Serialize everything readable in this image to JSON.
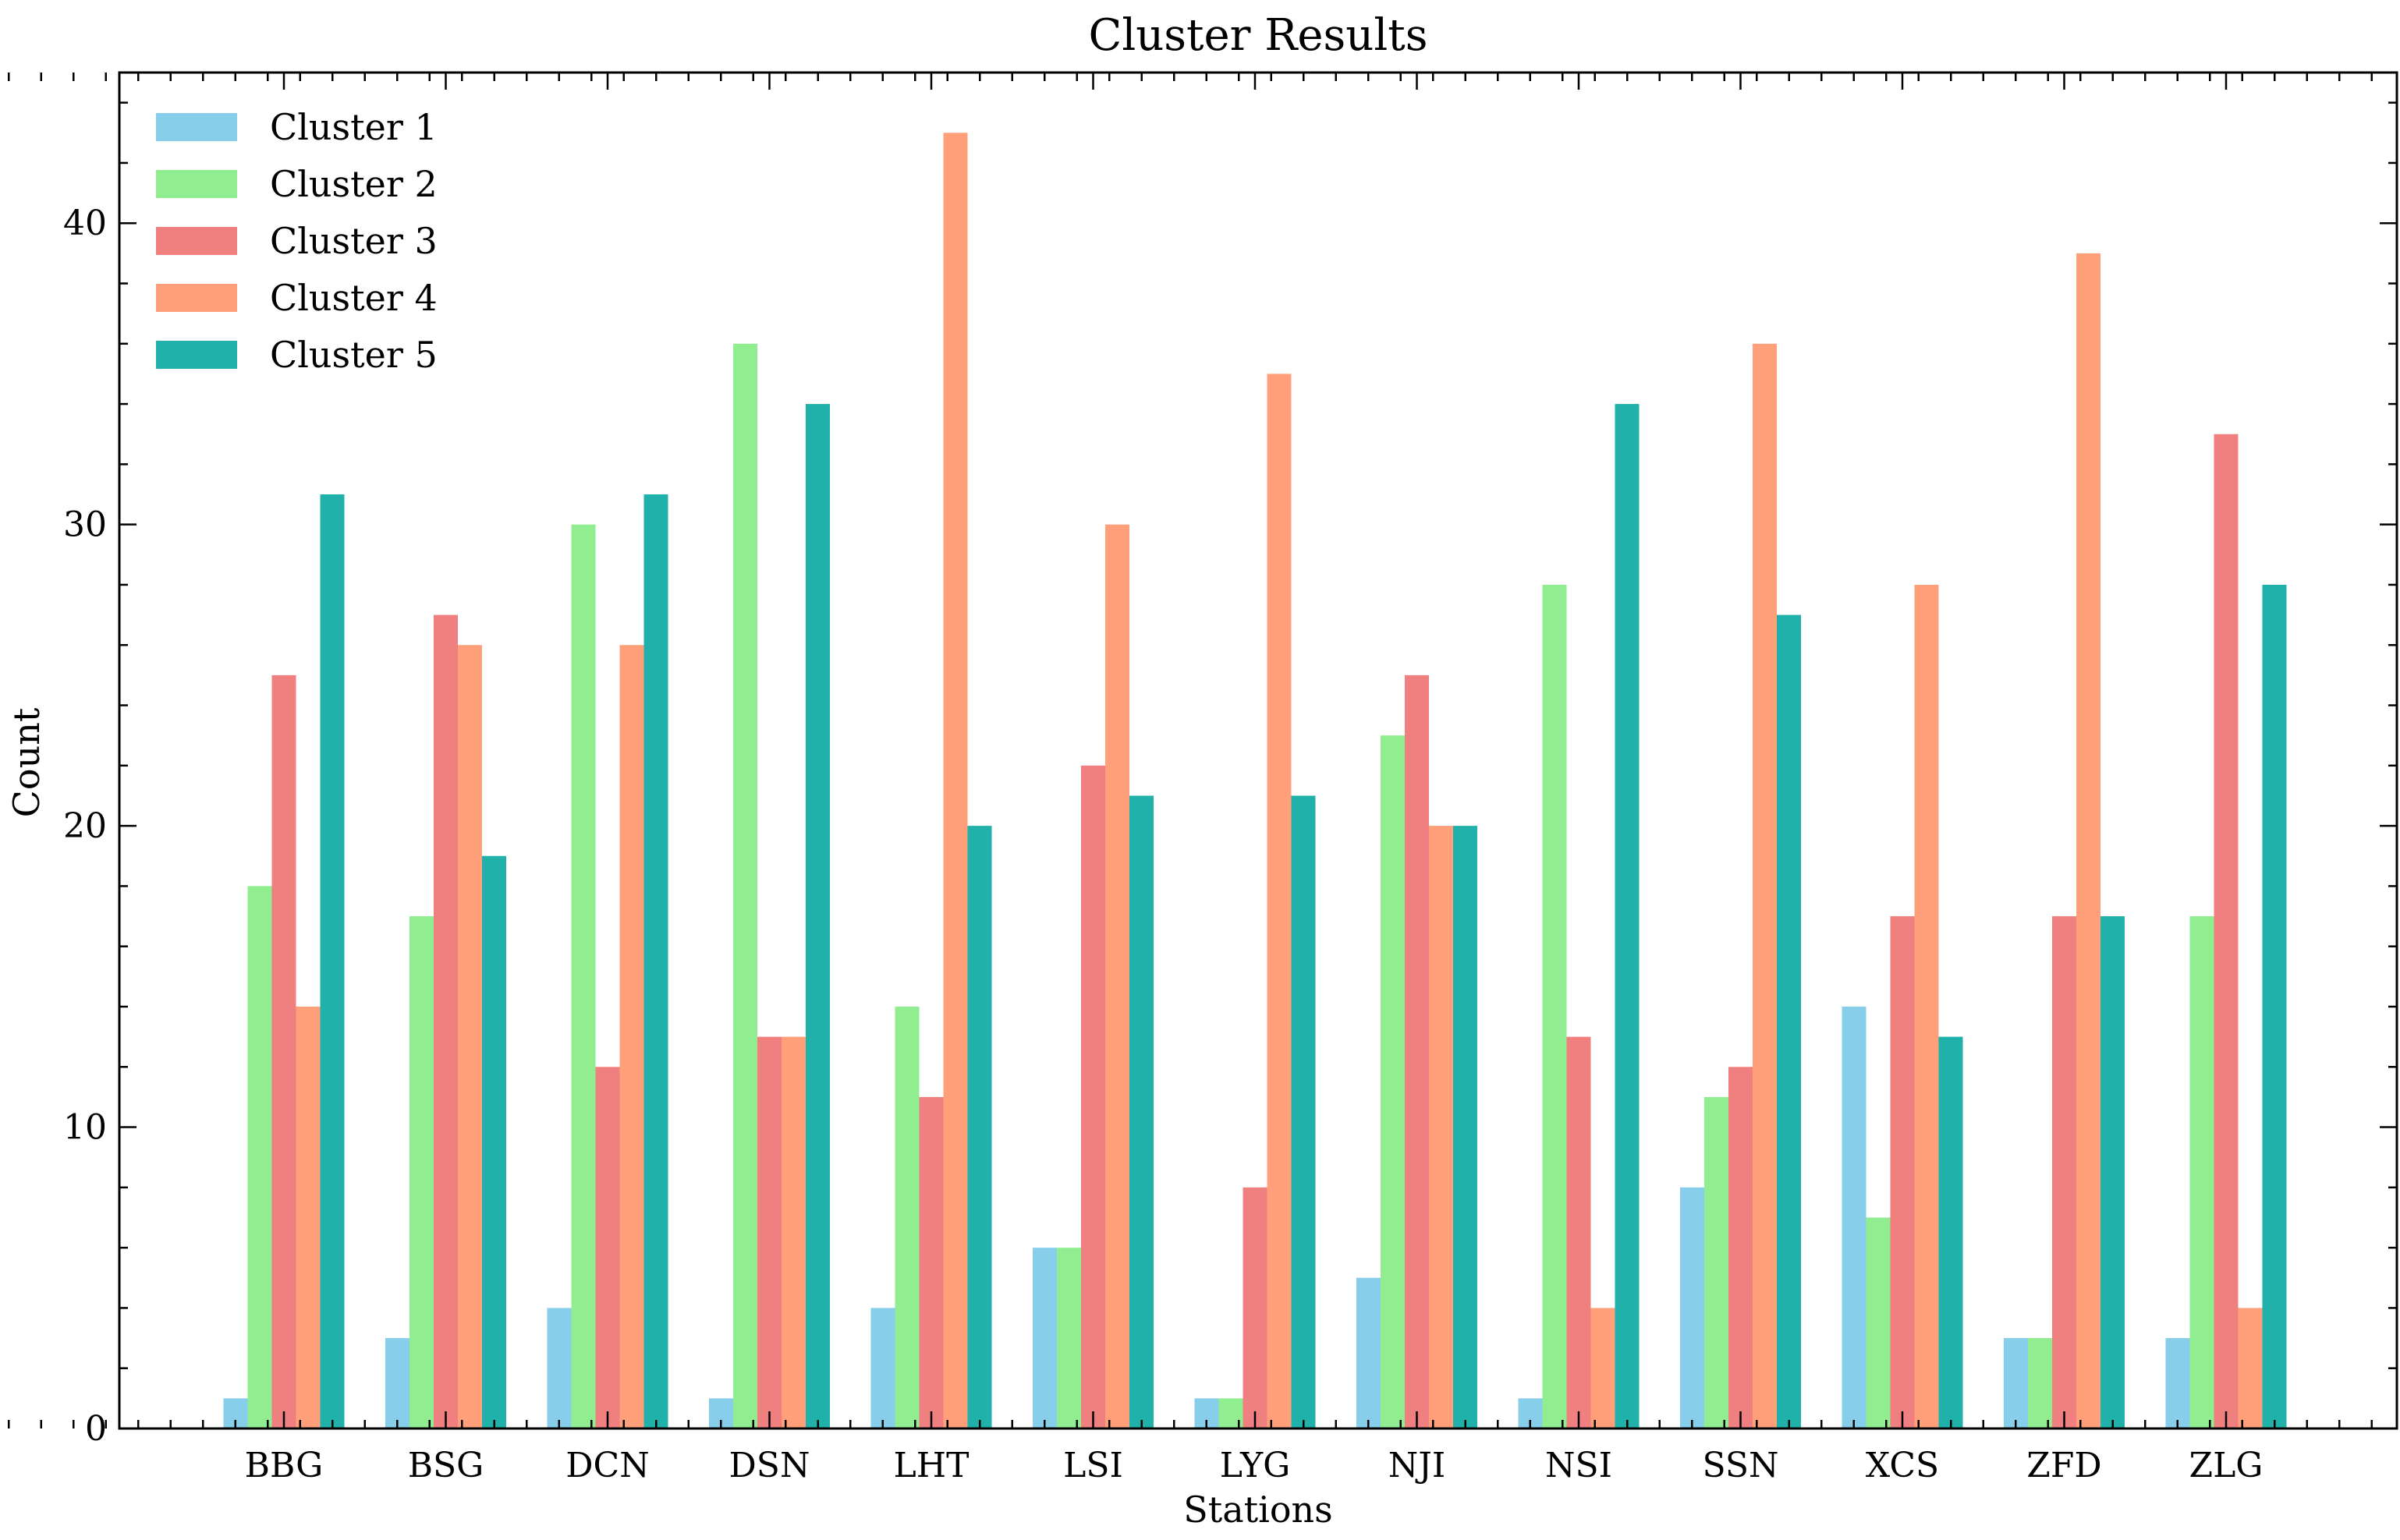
{
  "chart_data": {
    "type": "bar",
    "title": "Cluster Results",
    "xlabel": "Stations",
    "ylabel": "Count",
    "ylim": [
      0,
      45
    ],
    "yticks": [
      0,
      10,
      20,
      30,
      40
    ],
    "grid": false,
    "legend_position": "top-left",
    "categories": [
      "BBG",
      "BSG",
      "DCN",
      "DSN",
      "LHT",
      "LSI",
      "LYG",
      "NJI",
      "NSI",
      "SSN",
      "XCS",
      "ZFD",
      "ZLG"
    ],
    "series": [
      {
        "name": "Cluster 1",
        "color": "#87CEEB",
        "values": [
          1,
          3,
          4,
          1,
          4,
          6,
          1,
          5,
          1,
          8,
          14,
          3,
          3
        ]
      },
      {
        "name": "Cluster 2",
        "color": "#90EE90",
        "values": [
          18,
          17,
          30,
          36,
          14,
          6,
          1,
          23,
          28,
          11,
          7,
          3,
          17
        ]
      },
      {
        "name": "Cluster 3",
        "color": "#F08080",
        "values": [
          25,
          27,
          12,
          13,
          11,
          22,
          8,
          25,
          13,
          12,
          17,
          17,
          33
        ]
      },
      {
        "name": "Cluster 4",
        "color": "#FFA07A",
        "values": [
          14,
          26,
          26,
          13,
          43,
          30,
          35,
          20,
          4,
          36,
          28,
          39,
          4
        ]
      },
      {
        "name": "Cluster 5",
        "color": "#20B2AA",
        "values": [
          31,
          19,
          31,
          34,
          20,
          21,
          21,
          20,
          34,
          27,
          13,
          17,
          28
        ]
      }
    ]
  }
}
